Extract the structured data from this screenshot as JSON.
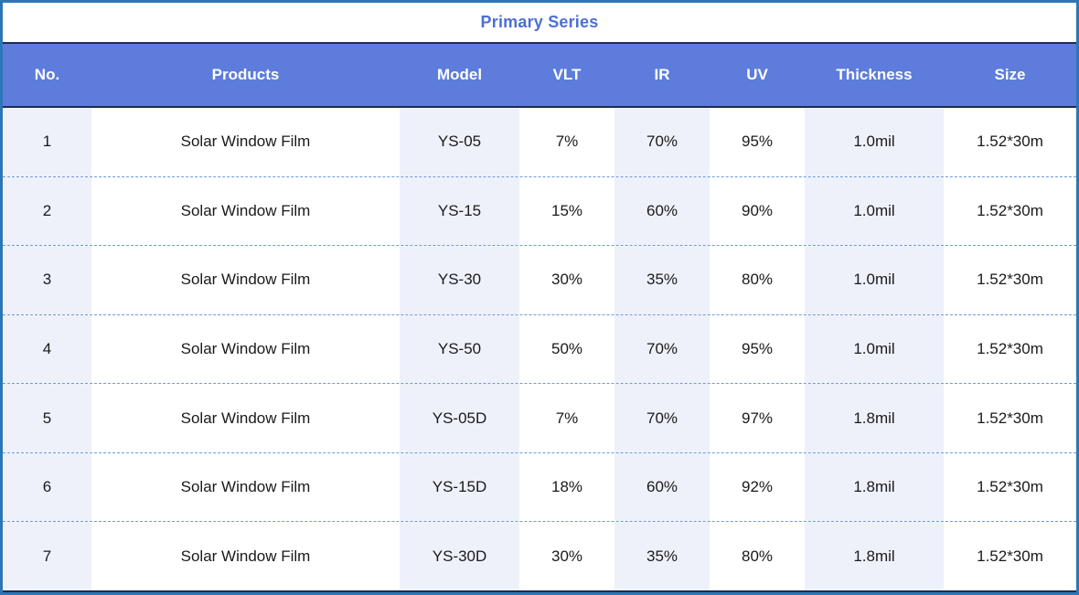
{
  "title": "Primary Series",
  "colors": {
    "outer_border": "#2e75b6",
    "header_bg": "#5d7cdb",
    "header_text": "#ffffff",
    "dark_line": "#1f2a4e",
    "light_cell_bg": "#eef1fa",
    "dashed_separator": "#6e9ad8",
    "title_text": "#4c6fd4",
    "body_text": "#1a1a1a"
  },
  "table": {
    "columns": [
      "No.",
      "Products",
      "Model",
      "VLT",
      "IR",
      "UV",
      "Thickness",
      "Size"
    ],
    "rows": [
      [
        "1",
        "Solar Window Film",
        "YS-05",
        "7%",
        "70%",
        "95%",
        "1.0mil",
        "1.52*30m"
      ],
      [
        "2",
        "Solar Window Film",
        "YS-15",
        "15%",
        "60%",
        "90%",
        "1.0mil",
        "1.52*30m"
      ],
      [
        "3",
        "Solar Window Film",
        "YS-30",
        "30%",
        "35%",
        "80%",
        "1.0mil",
        "1.52*30m"
      ],
      [
        "4",
        "Solar Window Film",
        "YS-50",
        "50%",
        "70%",
        "95%",
        "1.0mil",
        "1.52*30m"
      ],
      [
        "5",
        "Solar Window Film",
        "YS-05D",
        "7%",
        "70%",
        "97%",
        "1.8mil",
        "1.52*30m"
      ],
      [
        "6",
        "Solar Window Film",
        "YS-15D",
        "18%",
        "60%",
        "92%",
        "1.8mil",
        "1.52*30m"
      ],
      [
        "7",
        "Solar Window Film",
        "YS-30D",
        "30%",
        "35%",
        "80%",
        "1.8mil",
        "1.52*30m"
      ]
    ]
  }
}
